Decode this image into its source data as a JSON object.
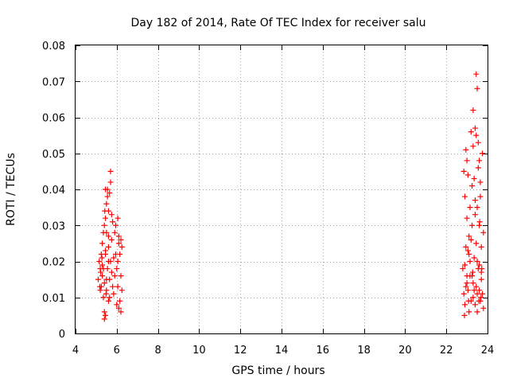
{
  "chart_data": {
    "type": "scatter",
    "title": "Day 182 of 2014, Rate Of TEC Index for receiver salu",
    "xlabel": "GPS time / hours",
    "ylabel": "ROTI / TECUs",
    "xlim": [
      4,
      24
    ],
    "ylim": [
      0,
      0.08
    ],
    "xticks": [
      "4",
      "6",
      "8",
      "10",
      "12",
      "14",
      "16",
      "18",
      "20",
      "22",
      "24"
    ],
    "yticks": [
      "0",
      "0.01",
      "0.02",
      "0.03",
      "0.04",
      "0.05",
      "0.06",
      "0.07",
      "0.08"
    ],
    "grid": true,
    "marker": "+",
    "color": "#ff0000",
    "series": [
      {
        "name": "ROTI",
        "x": [
          5.1,
          5.15,
          5.2,
          5.2,
          5.25,
          5.25,
          5.3,
          5.3,
          5.3,
          5.35,
          5.35,
          5.4,
          5.4,
          5.4,
          5.45,
          5.45,
          5.45,
          5.5,
          5.5,
          5.5,
          5.55,
          5.55,
          5.6,
          5.6,
          5.6,
          5.65,
          5.65,
          5.7,
          5.7,
          5.75,
          5.75,
          5.8,
          5.8,
          5.85,
          5.85,
          5.9,
          5.9,
          5.95,
          6.0,
          6.0,
          6.05,
          6.05,
          6.1,
          6.1,
          6.15,
          6.15,
          6.2,
          6.2,
          6.25,
          6.25,
          5.45,
          5.4,
          5.55,
          5.6,
          5.65,
          5.7,
          5.75,
          5.6,
          5.5,
          5.45,
          5.42,
          5.48,
          6.05,
          6.1,
          6.2,
          5.35,
          5.28,
          5.22,
          5.18,
          5.95,
          22.8,
          22.85,
          22.85,
          22.9,
          22.9,
          22.95,
          22.95,
          23.0,
          23.0,
          23.0,
          23.05,
          23.05,
          23.1,
          23.1,
          23.15,
          23.15,
          23.2,
          23.2,
          23.25,
          23.25,
          23.3,
          23.3,
          23.35,
          23.35,
          23.4,
          23.4,
          23.45,
          23.45,
          23.5,
          23.5,
          23.55,
          23.55,
          23.6,
          23.6,
          23.65,
          23.65,
          23.7,
          23.7,
          23.75,
          23.75,
          23.8,
          23.8,
          22.9,
          23.0,
          23.1,
          23.2,
          23.3,
          23.4,
          23.5,
          23.6,
          23.7,
          23.45,
          23.5,
          23.45,
          23.3,
          23.25,
          23.6,
          23.55,
          23.4,
          23.65,
          22.95,
          23.05,
          23.15,
          23.35,
          23.5,
          23.58,
          23.62,
          23.68,
          23.72,
          22.88,
          23.08,
          23.28
        ],
        "y": [
          0.015,
          0.02,
          0.012,
          0.018,
          0.022,
          0.013,
          0.016,
          0.019,
          0.025,
          0.01,
          0.028,
          0.006,
          0.03,
          0.014,
          0.032,
          0.022,
          0.005,
          0.028,
          0.036,
          0.012,
          0.04,
          0.018,
          0.024,
          0.034,
          0.009,
          0.039,
          0.015,
          0.02,
          0.042,
          0.017,
          0.026,
          0.031,
          0.013,
          0.011,
          0.021,
          0.028,
          0.016,
          0.03,
          0.008,
          0.018,
          0.02,
          0.013,
          0.025,
          0.007,
          0.022,
          0.009,
          0.026,
          0.006,
          0.012,
          0.024,
          0.04,
          0.004,
          0.038,
          0.02,
          0.01,
          0.045,
          0.033,
          0.027,
          0.015,
          0.023,
          0.034,
          0.011,
          0.032,
          0.027,
          0.016,
          0.018,
          0.021,
          0.017,
          0.013,
          0.022,
          0.018,
          0.011,
          0.045,
          0.038,
          0.008,
          0.051,
          0.024,
          0.048,
          0.014,
          0.032,
          0.012,
          0.044,
          0.006,
          0.027,
          0.02,
          0.035,
          0.009,
          0.056,
          0.016,
          0.03,
          0.062,
          0.01,
          0.043,
          0.021,
          0.008,
          0.057,
          0.025,
          0.013,
          0.035,
          0.006,
          0.046,
          0.018,
          0.012,
          0.03,
          0.009,
          0.038,
          0.015,
          0.024,
          0.05,
          0.011,
          0.028,
          0.007,
          0.019,
          0.016,
          0.022,
          0.026,
          0.014,
          0.033,
          0.011,
          0.019,
          0.017,
          0.072,
          0.068,
          0.055,
          0.052,
          0.041,
          0.048,
          0.053,
          0.037,
          0.042,
          0.013,
          0.023,
          0.016,
          0.012,
          0.02,
          0.009,
          0.031,
          0.01,
          0.018,
          0.005,
          0.009,
          0.017
        ]
      }
    ]
  }
}
